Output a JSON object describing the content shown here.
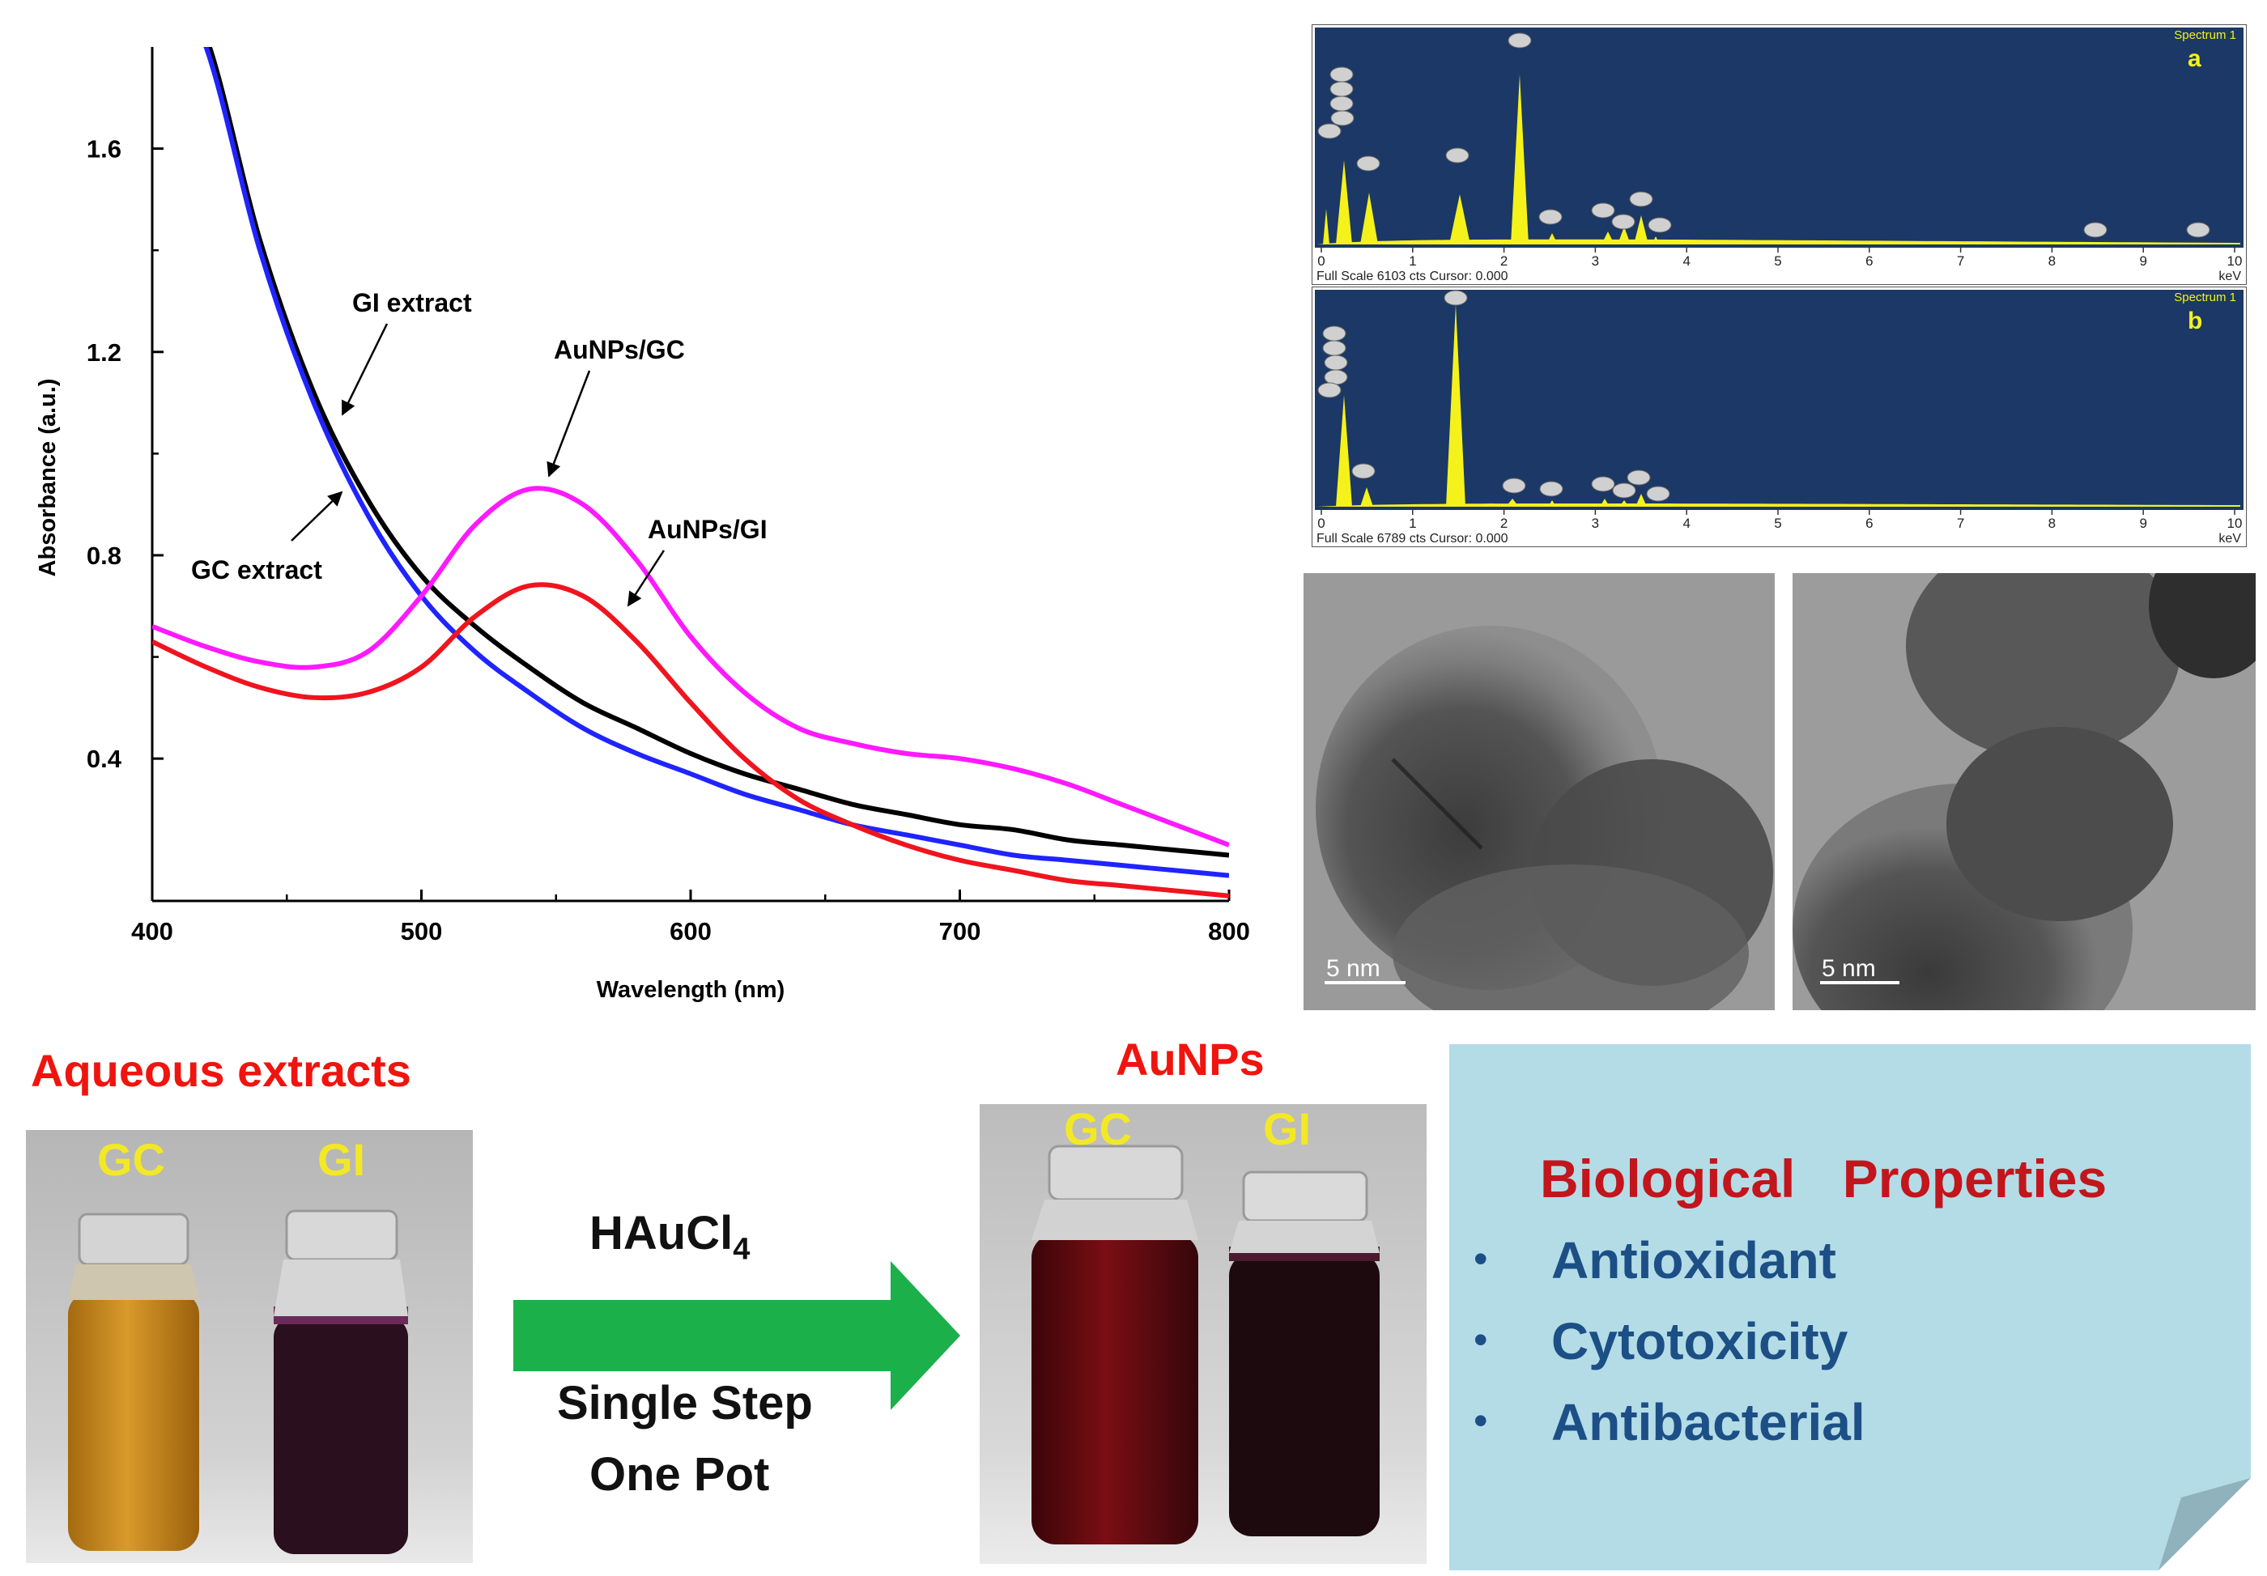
{
  "chart_data": {
    "type": "line",
    "xlabel": "Wavelength (nm)",
    "ylabel": "Absorbance (a.u.)",
    "xlim": [
      400,
      800
    ],
    "ylim": [
      0.12,
      1.8
    ],
    "x_ticks": [
      "400",
      "500",
      "600",
      "700",
      "800"
    ],
    "y_ticks": [
      "0.4",
      "0.8",
      "1.2",
      "1.6"
    ],
    "grid": false,
    "series": [
      {
        "name": "GI extract",
        "color": "#000000",
        "x": [
          400,
          420,
          440,
          460,
          480,
          500,
          520,
          540,
          560,
          580,
          600,
          620,
          640,
          660,
          680,
          700,
          720,
          740,
          760,
          780,
          800
        ],
        "y": [
          2.0,
          1.82,
          1.42,
          1.12,
          0.91,
          0.76,
          0.66,
          0.58,
          0.51,
          0.46,
          0.41,
          0.37,
          0.34,
          0.31,
          0.29,
          0.27,
          0.26,
          0.24,
          0.23,
          0.22,
          0.21
        ]
      },
      {
        "name": "GC extract",
        "color": "#1f24ff",
        "x": [
          400,
          420,
          440,
          460,
          480,
          500,
          520,
          540,
          560,
          580,
          600,
          620,
          640,
          660,
          680,
          700,
          720,
          740,
          760,
          780,
          800
        ],
        "y": [
          2.0,
          1.8,
          1.4,
          1.1,
          0.88,
          0.72,
          0.61,
          0.53,
          0.46,
          0.41,
          0.37,
          0.33,
          0.3,
          0.27,
          0.25,
          0.23,
          0.21,
          0.2,
          0.19,
          0.18,
          0.17
        ]
      },
      {
        "name": "AuNPs/GC",
        "color": "#ff19ff",
        "x": [
          400,
          420,
          440,
          460,
          480,
          500,
          520,
          540,
          560,
          580,
          600,
          620,
          640,
          660,
          680,
          700,
          720,
          740,
          760,
          780,
          800
        ],
        "y": [
          0.66,
          0.62,
          0.59,
          0.58,
          0.61,
          0.72,
          0.86,
          0.93,
          0.9,
          0.79,
          0.64,
          0.53,
          0.46,
          0.43,
          0.41,
          0.4,
          0.38,
          0.35,
          0.31,
          0.27,
          0.23
        ]
      },
      {
        "name": "AuNPs/GI",
        "color": "#f0141e",
        "x": [
          400,
          420,
          440,
          460,
          480,
          500,
          520,
          540,
          560,
          580,
          600,
          620,
          640,
          660,
          680,
          700,
          720,
          740,
          760,
          780,
          800
        ],
        "y": [
          0.63,
          0.58,
          0.54,
          0.52,
          0.53,
          0.58,
          0.68,
          0.74,
          0.72,
          0.63,
          0.51,
          0.4,
          0.32,
          0.27,
          0.23,
          0.2,
          0.18,
          0.16,
          0.15,
          0.14,
          0.13
        ]
      }
    ],
    "annotations": [
      "GI extract",
      "GC extract",
      "AuNPs/GC",
      "AuNPs/GI"
    ]
  },
  "eds": {
    "a": {
      "tag": "a",
      "title": "Spectrum 1",
      "footer": "Full Scale 6103 cts Cursor: 0.000",
      "unit": "keV",
      "ticks": [
        "0",
        "1",
        "2",
        "3",
        "4",
        "5",
        "6",
        "7",
        "8",
        "9",
        "10"
      ]
    },
    "b": {
      "tag": "b",
      "title": "Spectrum 1",
      "footer": "Full Scale 6789 cts Cursor: 0.000",
      "unit": "keV",
      "ticks": [
        "0",
        "1",
        "2",
        "3",
        "4",
        "5",
        "6",
        "7",
        "8",
        "9",
        "10"
      ]
    }
  },
  "tem": {
    "scale_left": "5 nm",
    "scale_right": "5 nm"
  },
  "extracts": {
    "heading": "Aqueous extracts",
    "left_label": "GC",
    "right_label": "GI"
  },
  "reaction": {
    "reagent": "HAuCl",
    "reagent_sub": "4",
    "line1": "Single Step",
    "line2": "One Pot"
  },
  "aunps": {
    "heading": "AuNPs",
    "left_label": "GC",
    "right_label": "GI"
  },
  "bio": {
    "title": "Biological Properties",
    "items": [
      "Antioxidant",
      "Cytotoxicity",
      "Antibacterial"
    ],
    "bullet": "•"
  },
  "colors": {
    "eds_bg": "#1b3866",
    "eds_peak": "#f4f21a",
    "note_bg": "#b4dce6",
    "arrow": "#1bb04a"
  }
}
